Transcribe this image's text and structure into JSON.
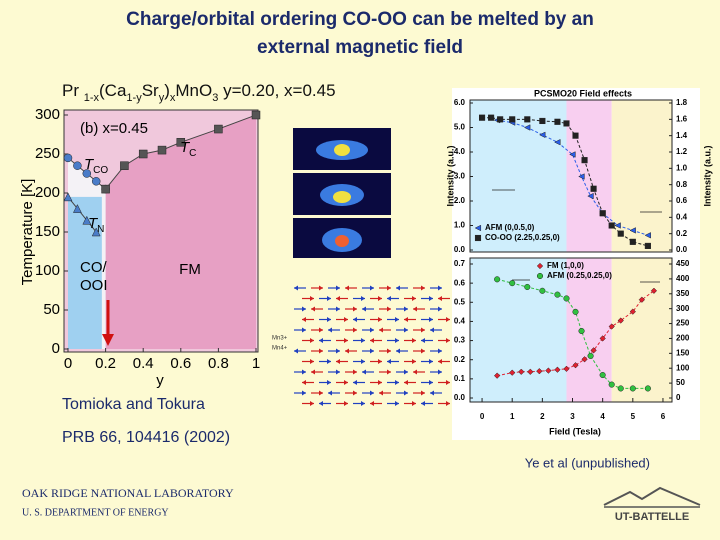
{
  "title": [
    "Charge/orbital ordering CO-OO can be melted by an",
    "external magnetic field"
  ],
  "formula": [
    {
      "text": "Pr ",
      "sub": false
    },
    {
      "text": "1-x",
      "sub": true
    },
    {
      "text": "(Ca",
      "sub": false
    },
    {
      "text": "1-y",
      "sub": true
    },
    {
      "text": "Sr",
      "sub": false
    },
    {
      "text": "y",
      "sub": true
    },
    {
      "text": ")",
      "sub": false
    },
    {
      "text": "x",
      "sub": true
    },
    {
      "text": "MnO",
      "sub": false
    },
    {
      "text": "3",
      "sub": true
    },
    {
      "text": " y=0.20, x=0.45",
      "sub": false
    }
  ],
  "phase_diagram": {
    "type": "scatter",
    "xlabel": "y",
    "ylabel": "Temperature [K]",
    "panel": "(b) x=0.45",
    "xlim": [
      0,
      1
    ],
    "ylim": [
      0,
      300
    ],
    "xticks": [
      0,
      0.2,
      0.4,
      0.6,
      0.8,
      1
    ],
    "yticks": [
      0,
      50,
      100,
      150,
      200,
      250,
      300
    ],
    "series": [
      {
        "label": {
          "text": "T",
          "sub": "CO"
        },
        "color": "#4a7cc8",
        "marker": "circle",
        "x": [
          0,
          0.05,
          0.1,
          0.15,
          0.2
        ],
        "values": [
          245,
          235,
          225,
          215,
          205
        ]
      },
      {
        "label": {
          "text": "T",
          "sub": "C"
        },
        "color": "#555555",
        "marker": "square",
        "x": [
          0.2,
          0.3,
          0.4,
          0.5,
          0.6,
          0.8,
          1
        ],
        "values": [
          205,
          235,
          250,
          255,
          265,
          282,
          300
        ]
      },
      {
        "label": {
          "text": "T",
          "sub": "N"
        },
        "color": "#4a7cc8",
        "marker": "triangle",
        "x": [
          0,
          0.05,
          0.1,
          0.15
        ],
        "values": [
          195,
          180,
          165,
          150
        ]
      }
    ],
    "shade": {
      "xlim": [
        0,
        0.18
      ],
      "ylim": [
        0,
        195
      ],
      "color": "#9fd0f0"
    },
    "regions": {
      "co": [
        "CO/",
        "OOI"
      ],
      "fm": "FM"
    }
  },
  "images": {
    "mn3": "Mn3+",
    "mn4": "Mn4+"
  },
  "citation_left": [
    "Tomioka and Tokura",
    "PRB 66, 104416 (2002)"
  ],
  "citation_right": "Ye et al (unpublished)",
  "field_effects": {
    "type": "scatter",
    "title": "PCSMO20 Field effects",
    "xlabel": "Field (Tesla)",
    "ylabel": "Intensity (a.u.)",
    "y2label": "Intensity (a.u.)",
    "xlim": [
      -0.4,
      6.3
    ],
    "xticks": [
      0,
      1,
      2,
      3,
      4,
      5,
      6
    ],
    "regions": [
      {
        "from": -0.4,
        "to": 2.8,
        "color": "#cfeefc"
      },
      {
        "from": 2.8,
        "to": 4.3,
        "color": "#f8cff0"
      },
      {
        "from": 4.3,
        "to": 6.3,
        "color": "#fbf3cc"
      }
    ],
    "panels": [
      {
        "ylim": [
          0,
          6
        ],
        "yticks": [
          {
            "value": 0,
            "label": "0.0"
          },
          {
            "value": 1,
            "label": "1.0"
          },
          {
            "value": 2,
            "label": "2.0"
          },
          {
            "value": 3,
            "label": "3.0"
          },
          {
            "value": 4,
            "label": "4.0"
          },
          {
            "value": 5,
            "label": "5.0"
          },
          {
            "value": 6,
            "label": "6.0"
          }
        ],
        "y2lim": [
          0,
          1.8
        ],
        "y2ticks": [
          {
            "value": 0,
            "label": "0.0"
          },
          0.2,
          0.4,
          0.6,
          0.8,
          {
            "value": 1,
            "label": "1.0"
          },
          1.2,
          1.4,
          1.6,
          1.8
        ],
        "legend": "lower left",
        "series": [
          {
            "name": "AFM (0,0.5,0)",
            "color": "#2a5ee8",
            "marker": "triangle-left",
            "axis": "y",
            "x": [
              0.5,
              1,
              1.5,
              2,
              2.5,
              3,
              3.3,
              3.6,
              4,
              4.5,
              5,
              5.5
            ],
            "values": [
              5.3,
              5.2,
              5.0,
              4.7,
              4.4,
              3.9,
              3.0,
              2.2,
              1.5,
              1.0,
              0.8,
              0.6
            ]
          },
          {
            "name": "CO-OO (2.25,0.25,0)",
            "color": "#222222",
            "marker": "square",
            "axis": "y2",
            "x": [
              0,
              0.3,
              0.6,
              1,
              1.5,
              2,
              2.5,
              2.8,
              3.1,
              3.4,
              3.7,
              4,
              4.3,
              4.6,
              5,
              5.5
            ],
            "values": [
              1.62,
              1.62,
              1.6,
              1.6,
              1.6,
              1.58,
              1.57,
              1.55,
              1.4,
              1.1,
              0.75,
              0.45,
              0.3,
              0.2,
              0.1,
              0.05
            ]
          }
        ]
      },
      {
        "ylim": [
          0,
          0.7
        ],
        "yticks": [
          {
            "value": 0,
            "label": "0.0"
          },
          0.1,
          0.2,
          0.3,
          0.4,
          0.5,
          0.6,
          0.7
        ],
        "y2lim": [
          0,
          450
        ],
        "y2ticks": [
          0,
          50,
          100,
          150,
          200,
          250,
          300,
          350,
          400,
          450
        ],
        "legend": "upper right",
        "series": [
          {
            "name": "FM (1,0,0)",
            "color": "#e02030",
            "marker": "diamond",
            "axis": "y2",
            "x": [
              0.5,
              1,
              1.3,
              1.6,
              1.9,
              2.2,
              2.5,
              2.8,
              3.1,
              3.4,
              3.7,
              4,
              4.3,
              4.6,
              5,
              5.3,
              5.7
            ],
            "values": [
              75,
              85,
              88,
              88,
              90,
              92,
              95,
              98,
              110,
              130,
              160,
              200,
              240,
              260,
              290,
              330,
              360
            ]
          },
          {
            "name": "AFM (0.25,0.25,0)",
            "color": "#30c040",
            "marker": "circle",
            "axis": "y",
            "x": [
              0.5,
              1,
              1.5,
              2,
              2.5,
              2.8,
              3.1,
              3.3,
              3.6,
              4,
              4.3,
              4.6,
              5,
              5.5
            ],
            "values": [
              0.62,
              0.6,
              0.58,
              0.56,
              0.54,
              0.52,
              0.45,
              0.35,
              0.22,
              0.12,
              0.07,
              0.05,
              0.05,
              0.05
            ]
          }
        ]
      }
    ]
  },
  "footer": {
    "lab": "OAK RIDGE NATIONAL LABORATORY",
    "dept": "U. S. DEPARTMENT OF ENERGY",
    "logo": "UT-BATTELLE"
  }
}
